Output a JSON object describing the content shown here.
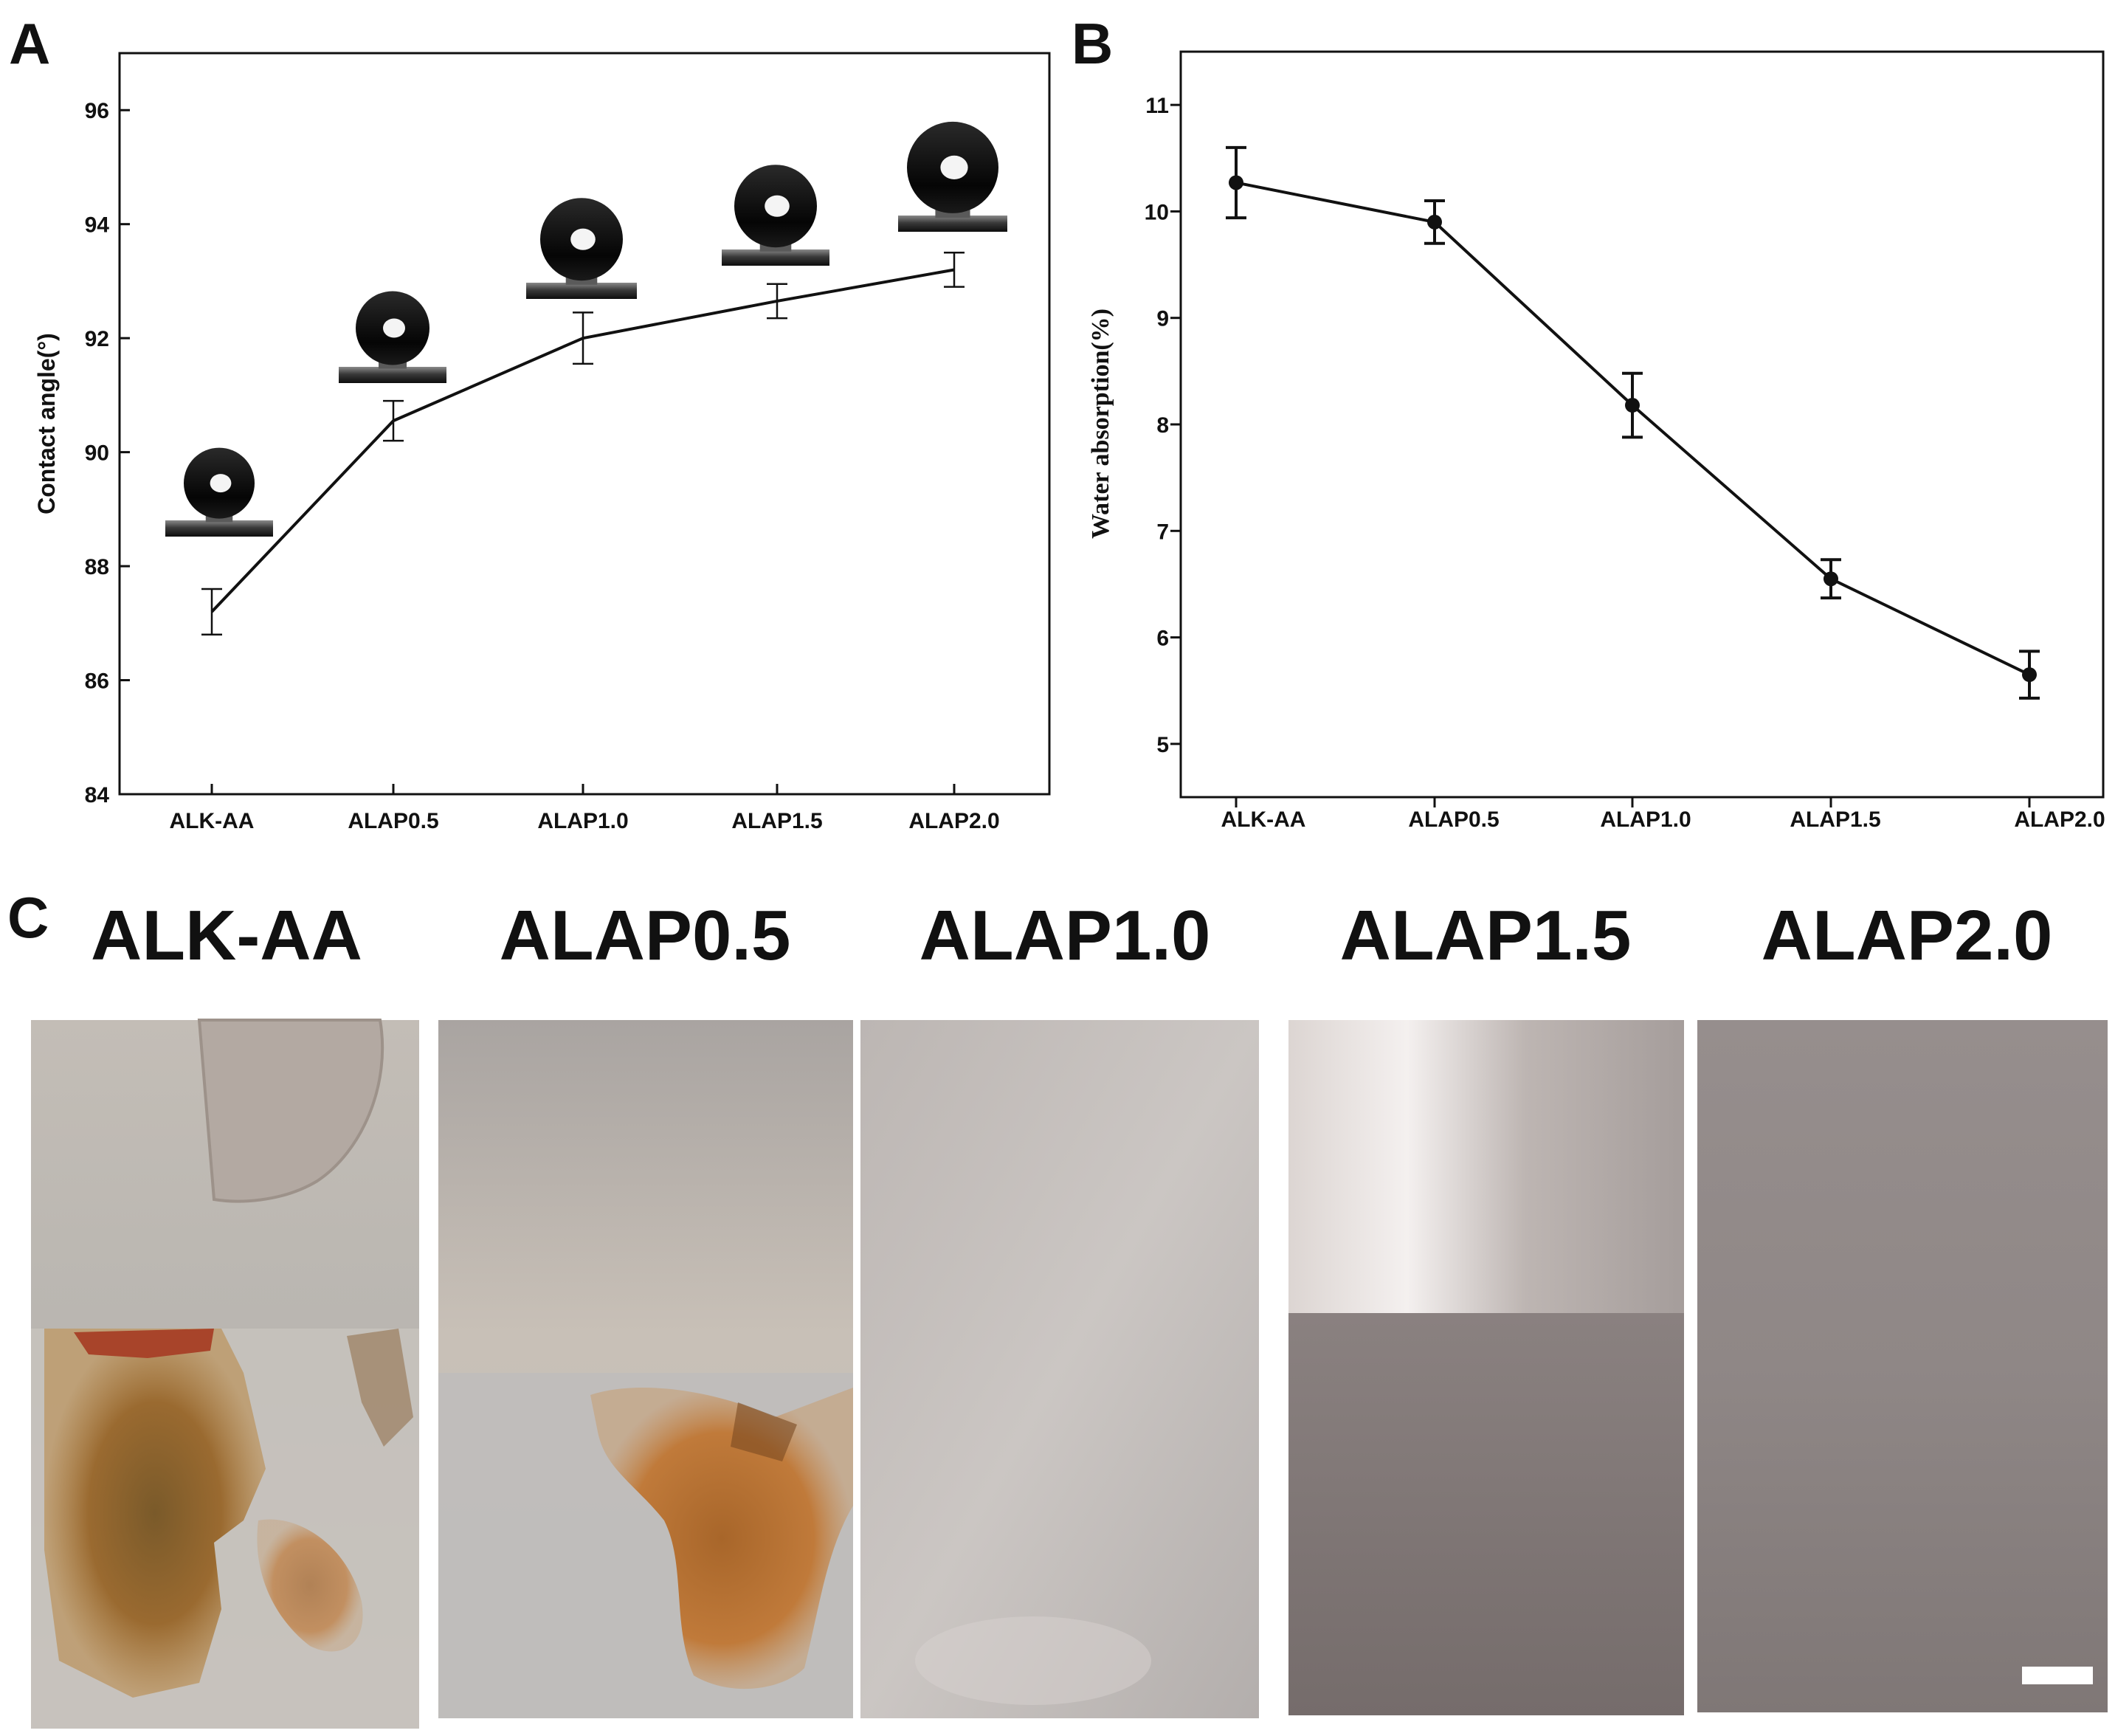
{
  "panels": {
    "a": {
      "letter": "A"
    },
    "b": {
      "letter": "B"
    },
    "c": {
      "letter": "C",
      "samples": [
        "ALK-AA",
        "ALAP0.5",
        "ALAP1.0",
        "ALAP1.5",
        "ALAP2.0"
      ]
    }
  },
  "chart_data": [
    {
      "type": "line",
      "panel": "A",
      "categories": [
        "ALK-AA",
        "ALAP0.5",
        "ALAP1.0",
        "ALAP1.5",
        "ALAP2.0"
      ],
      "values": [
        87.2,
        90.55,
        92.0,
        92.65,
        93.2
      ],
      "errors": [
        0.4,
        0.35,
        0.45,
        0.3,
        0.3
      ],
      "ylabel": "Contact angle(°)",
      "ylim": [
        84,
        97
      ],
      "yticks": [
        84,
        86,
        88,
        90,
        92,
        94,
        96
      ],
      "markers": "none",
      "grid": false,
      "annotations": "water-droplet images above each point"
    },
    {
      "type": "line",
      "panel": "B",
      "categories": [
        "ALK-AA",
        "ALAP0.5",
        "ALAP1.0",
        "ALAP1.5",
        "ALAP2.0"
      ],
      "values": [
        10.27,
        9.9,
        8.18,
        6.55,
        5.65
      ],
      "errors": [
        0.33,
        0.2,
        0.3,
        0.18,
        0.22
      ],
      "ylabel": "Water absorption(%)",
      "ylim": [
        4.5,
        11.5
      ],
      "yticks": [
        5,
        6,
        7,
        8,
        9,
        10,
        11
      ],
      "markers": "circle",
      "grid": false
    }
  ],
  "colors": {
    "line": "#111111",
    "axis": "#111111"
  }
}
